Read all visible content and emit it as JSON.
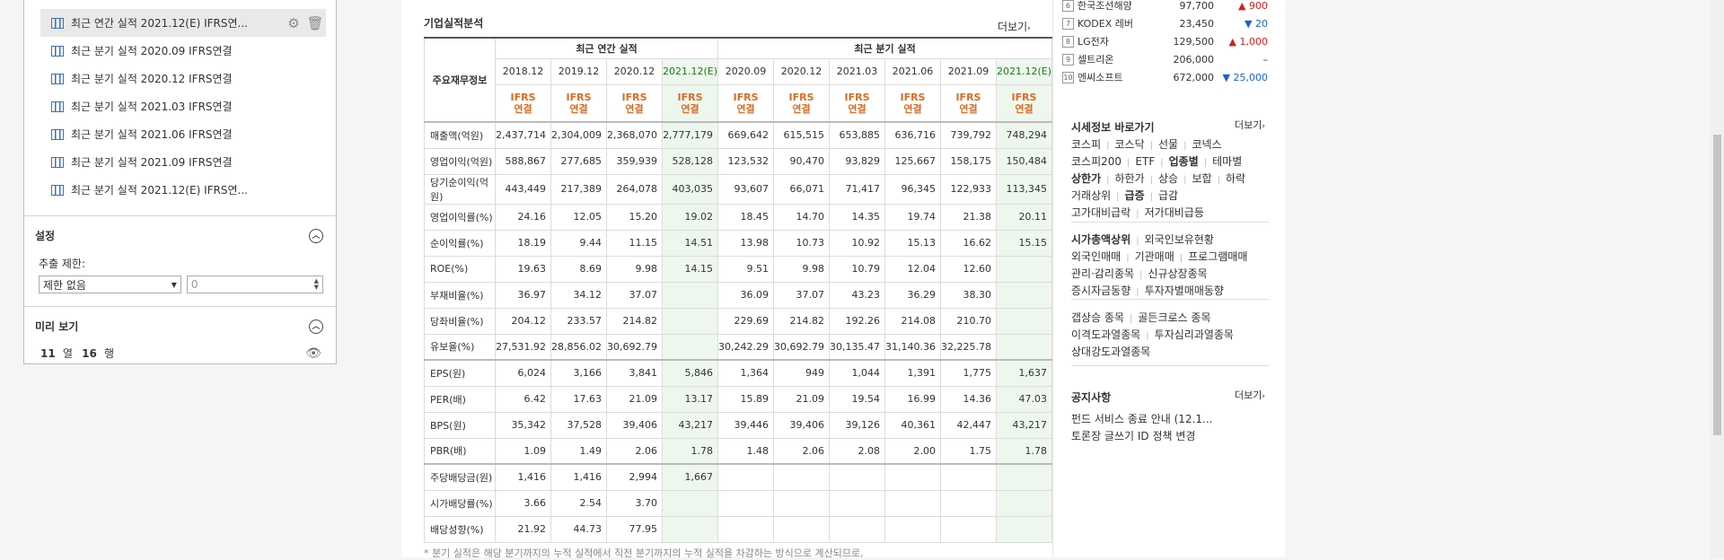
{
  "panel": {
    "tables": [
      {
        "label": "최근 연간 실적 2021.12(E) IFRS연..."
      },
      {
        "label": "최근 분기 실적 2020.09 IFRS연결"
      },
      {
        "label": "최근 분기 실적 2020.12 IFRS연결"
      },
      {
        "label": "최근 분기 실적 2021.03 IFRS연결"
      },
      {
        "label": "최근 분기 실적 2021.06 IFRS연결"
      },
      {
        "label": "최근 분기 실적 2021.09 IFRS연결"
      },
      {
        "label": "최근 분기 실적 2021.12(E) IFRS연..."
      }
    ],
    "settings": {
      "title": "설정",
      "limit_label": "추출 제한:",
      "select_value": "제한 없음",
      "number_placeholder": "0"
    },
    "preview": {
      "title": "미리 보기",
      "cols": "11",
      "cols_unit": "열",
      "rows": "16",
      "rows_unit": "행"
    }
  },
  "content": {
    "title": "기업실적분석",
    "more": "더보기",
    "header_item": "주요재무정보",
    "group_annual": "최근 연간 실적",
    "group_quarter": "최근 분기 실적",
    "periods": [
      "2018.12",
      "2019.12",
      "2020.12",
      "2021.12(E)",
      "2020.09",
      "2020.12",
      "2021.03",
      "2021.06",
      "2021.09",
      "2021.12(E)"
    ],
    "ifrs_line1": "IFRS",
    "ifrs_line2": "연결",
    "rows": [
      {
        "label": "매출액(억원)",
        "v": [
          "2,437,714",
          "2,304,009",
          "2,368,070",
          "2,777,179",
          "669,642",
          "615,515",
          "653,885",
          "636,716",
          "739,792",
          "748,294"
        ]
      },
      {
        "label": "영업이익(억원)",
        "v": [
          "588,867",
          "277,685",
          "359,939",
          "528,128",
          "123,532",
          "90,470",
          "93,829",
          "125,667",
          "158,175",
          "150,484"
        ]
      },
      {
        "label": "당기순이익(억원)",
        "v": [
          "443,449",
          "217,389",
          "264,078",
          "403,035",
          "93,607",
          "66,071",
          "71,417",
          "96,345",
          "122,933",
          "113,345"
        ]
      },
      {
        "label": "영업이익률(%)",
        "v": [
          "24.16",
          "12.05",
          "15.20",
          "19.02",
          "18.45",
          "14.70",
          "14.35",
          "19.74",
          "21.38",
          "20.11"
        ]
      },
      {
        "label": "순이익률(%)",
        "v": [
          "18.19",
          "9.44",
          "11.15",
          "14.51",
          "13.98",
          "10.73",
          "10.92",
          "15.13",
          "16.62",
          "15.15"
        ]
      },
      {
        "label": "ROE(%)",
        "v": [
          "19.63",
          "8.69",
          "9.98",
          "14.15",
          "9.51",
          "9.98",
          "10.79",
          "12.04",
          "12.60",
          ""
        ]
      },
      {
        "label": "부채비율(%)",
        "v": [
          "36.97",
          "34.12",
          "37.07",
          "",
          "36.09",
          "37.07",
          "43.23",
          "36.29",
          "38.30",
          ""
        ]
      },
      {
        "label": "당좌비율(%)",
        "v": [
          "204.12",
          "233.57",
          "214.82",
          "",
          "229.69",
          "214.82",
          "192.26",
          "214.08",
          "210.70",
          ""
        ]
      },
      {
        "label": "유보율(%)",
        "v": [
          "27,531.92",
          "28,856.02",
          "30,692.79",
          "",
          "30,242.29",
          "30,692.79",
          "30,135.47",
          "31,140.36",
          "32,225.78",
          ""
        ]
      },
      {
        "label": "EPS(원)",
        "v": [
          "6,024",
          "3,166",
          "3,841",
          "5,846",
          "1,364",
          "949",
          "1,044",
          "1,391",
          "1,775",
          "1,637"
        ]
      },
      {
        "label": "PER(배)",
        "v": [
          "6.42",
          "17.63",
          "21.09",
          "13.17",
          "15.89",
          "21.09",
          "19.54",
          "16.99",
          "14.36",
          "47.03"
        ]
      },
      {
        "label": "BPS(원)",
        "v": [
          "35,342",
          "37,528",
          "39,406",
          "43,217",
          "39,446",
          "39,406",
          "39,126",
          "40,361",
          "42,447",
          "43,217"
        ]
      },
      {
        "label": "PBR(배)",
        "v": [
          "1.09",
          "1.49",
          "2.06",
          "1.78",
          "1.48",
          "2.06",
          "2.08",
          "2.00",
          "1.75",
          "1.78"
        ]
      },
      {
        "label": "주당배당금(원)",
        "v": [
          "1,416",
          "1,416",
          "2,994",
          "1,667",
          "",
          "",
          "",
          "",
          "",
          ""
        ]
      },
      {
        "label": "시가배당률(%)",
        "v": [
          "3.66",
          "2.54",
          "3.70",
          "",
          "",
          "",
          "",
          "",
          "",
          ""
        ]
      },
      {
        "label": "배당성향(%)",
        "v": [
          "21.92",
          "44.73",
          "77.95",
          "",
          "",
          "",
          "",
          "",
          "",
          ""
        ]
      }
    ],
    "footnote": "* 분기 실적은 해당 분기까지의 누적 실적에서 직전 분기까지의 누적 실적을 차감하는 방식으로 계산되므로,"
  },
  "right": {
    "ranking": [
      {
        "n": "6",
        "name": "한국조선해양",
        "price": "97,700",
        "chg": "▲ 900",
        "dir": "up"
      },
      {
        "n": "7",
        "name": "KODEX 레버",
        "price": "23,450",
        "chg": "▼ 20",
        "dir": "dn"
      },
      {
        "n": "8",
        "name": "LG전자",
        "price": "129,500",
        "chg": "▲ 1,000",
        "dir": "up"
      },
      {
        "n": "9",
        "name": "셀트리온",
        "price": "206,000",
        "chg": "–",
        "dir": "none"
      },
      {
        "n": "10",
        "name": "엔씨소프트",
        "price": "672,000",
        "chg": "▼ 25,000",
        "dir": "dn"
      }
    ],
    "market_title": "시세정보 바로가기",
    "more": "더보기",
    "links": [
      [
        "코스피",
        "코스닥",
        "선물",
        "코넥스"
      ],
      [
        "코스피200",
        "ETF",
        "업종별",
        "테마별"
      ],
      [
        "상한가",
        "하한가",
        "상승",
        "보합",
        "하락"
      ],
      [
        "거래상위",
        "급증",
        "급감"
      ],
      [
        "고가대비급락",
        "저가대비급등"
      ]
    ],
    "links2": [
      [
        "시가총액상위",
        "외국인보유현황"
      ],
      [
        "외국인매매",
        "기관매매",
        "프로그램매매"
      ],
      [
        "관리·감리종목",
        "신규상장종목"
      ],
      [
        "증시자금동향",
        "투자자별매매동향"
      ]
    ],
    "links3": [
      [
        "갭상승 종목",
        "골든크로스 종목"
      ],
      [
        "이격도과열종목",
        "투자심리과열종목"
      ],
      [
        "상대강도과열종목"
      ]
    ],
    "notice_title": "공지사항",
    "notices": [
      "펀드 서비스 종료 안내 (12.1...",
      "토론장 글쓰기 ID 정책 변경"
    ]
  }
}
